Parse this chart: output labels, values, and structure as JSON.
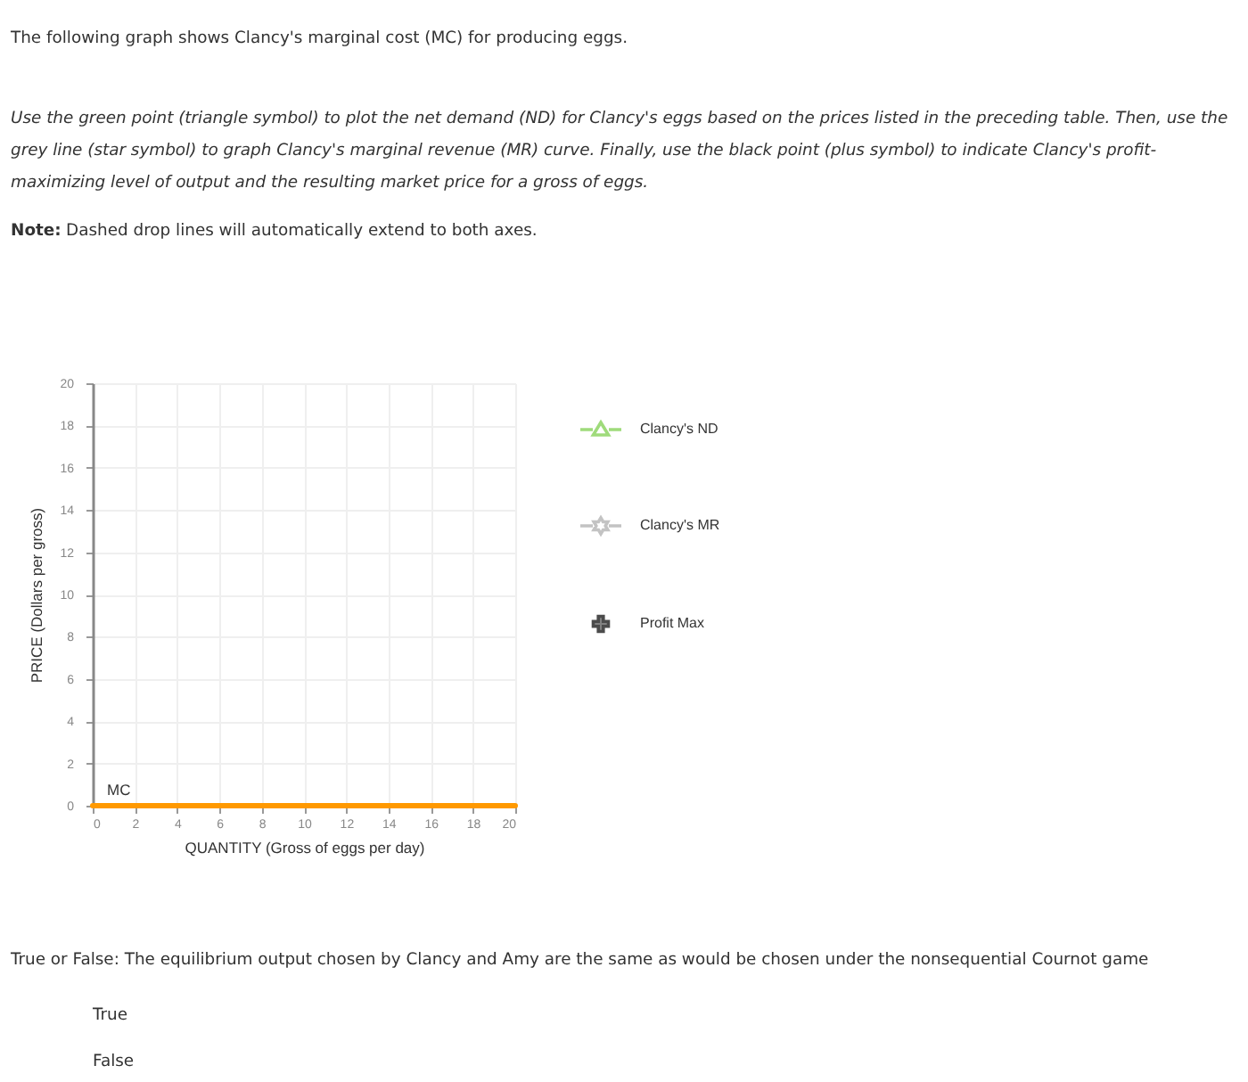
{
  "chart_data": {
    "type": "line",
    "title": "The following graph shows Clancy's marginal cost (MC) for producing eggs.",
    "subtitle": "Use the green point (triangle symbol) to plot the net demand (ND) for Clancy's eggs based on the prices listed in the preceding table. Then, use the grey line (star symbol) to graph Clancy's marginal revenue (MR) curve. Finally, use the black point (plus symbol) to indicate Clancy's profit-maximizing level of output and the resulting market price for a gross of eggs.",
    "xlabel": "QUANTITY (Gross of eggs per day)",
    "ylabel": "PRICE (Dollars per gross)",
    "x": [
      0,
      20
    ],
    "series": [
      {
        "name": "MC",
        "color": "#ff9900",
        "values": [
          0,
          0
        ]
      },
      {
        "name": "Clancy's ND",
        "color": "#77cc44",
        "marker": "triangle",
        "values": [
          null,
          null
        ]
      },
      {
        "name": "Clancy's MR",
        "color": "#aaaaaa",
        "marker": "star",
        "values": [
          null,
          null
        ]
      },
      {
        "name": "Profit Max",
        "type": "scatter",
        "color": "#000000",
        "marker": "cross",
        "values": [
          null,
          null
        ]
      }
    ],
    "xlim": [
      0,
      20
    ],
    "ylim": [
      0,
      20
    ],
    "xticks": [
      0,
      2,
      4,
      6,
      8,
      10,
      12,
      14,
      16,
      18,
      20
    ],
    "yticks": [
      0,
      2,
      4,
      6,
      8,
      10,
      12,
      14,
      16,
      18,
      20
    ],
    "grid": true,
    "legend": "right",
    "annotations": [
      "Note: Dashed drop lines will automatically extend to both axes.",
      "True or False: The equilibrium output chosen by Clancy and Amy are the same as would be chosen under the nonsequential Cournot game",
      "True",
      "False"
    ]
  }
}
